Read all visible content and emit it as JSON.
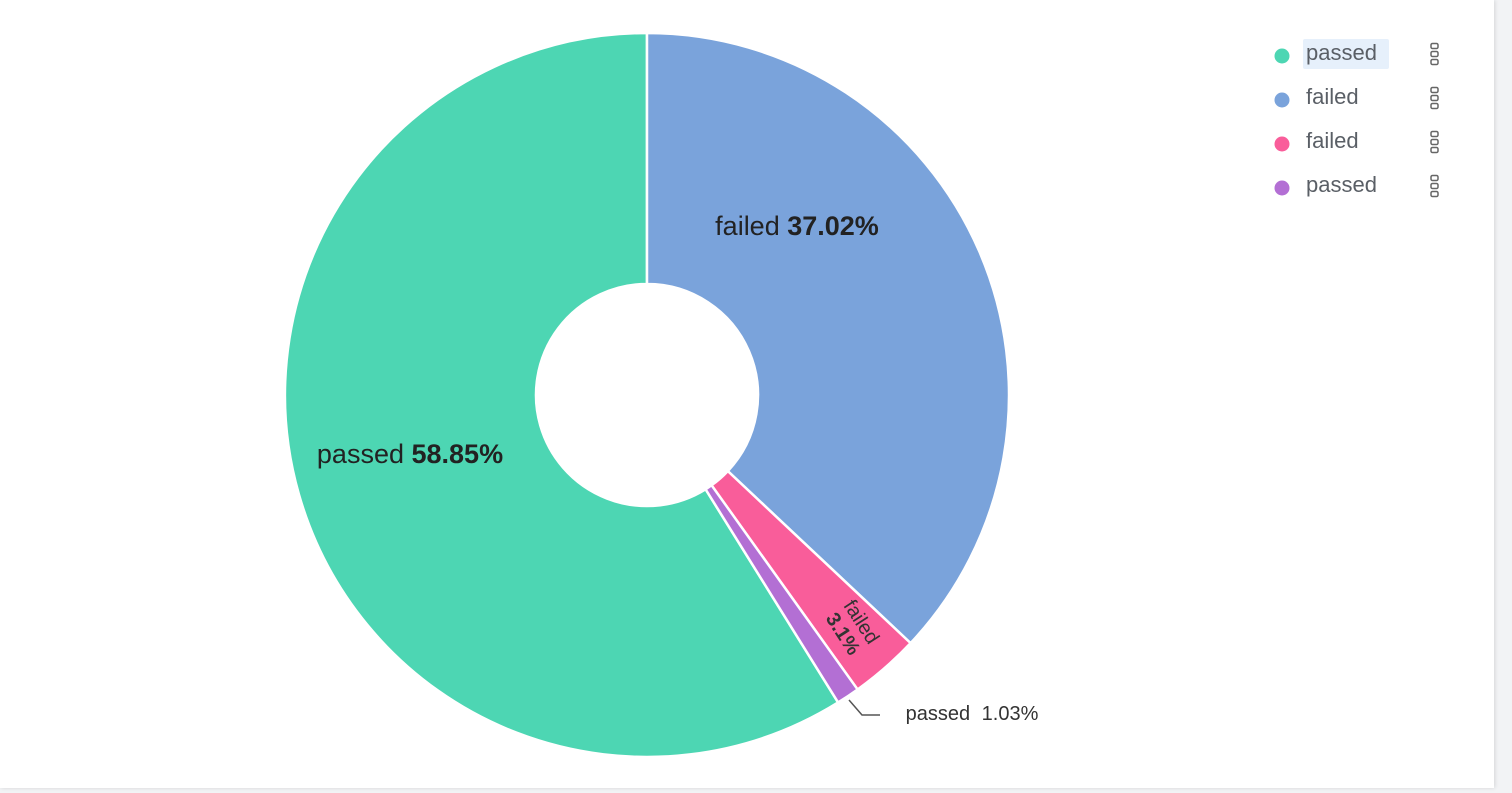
{
  "chart_data": {
    "type": "pie",
    "categories": [
      "passed",
      "failed",
      "failed",
      "passed"
    ],
    "values": [
      58.85,
      37.02,
      3.1,
      1.03
    ],
    "value_labels": [
      "58.85%",
      "37.02%",
      "3.1%",
      "1.03%"
    ],
    "colors": [
      "#4dd6b3",
      "#7aa3db",
      "#f95d9a",
      "#b36fd4"
    ],
    "legend": "top-right"
  }
}
